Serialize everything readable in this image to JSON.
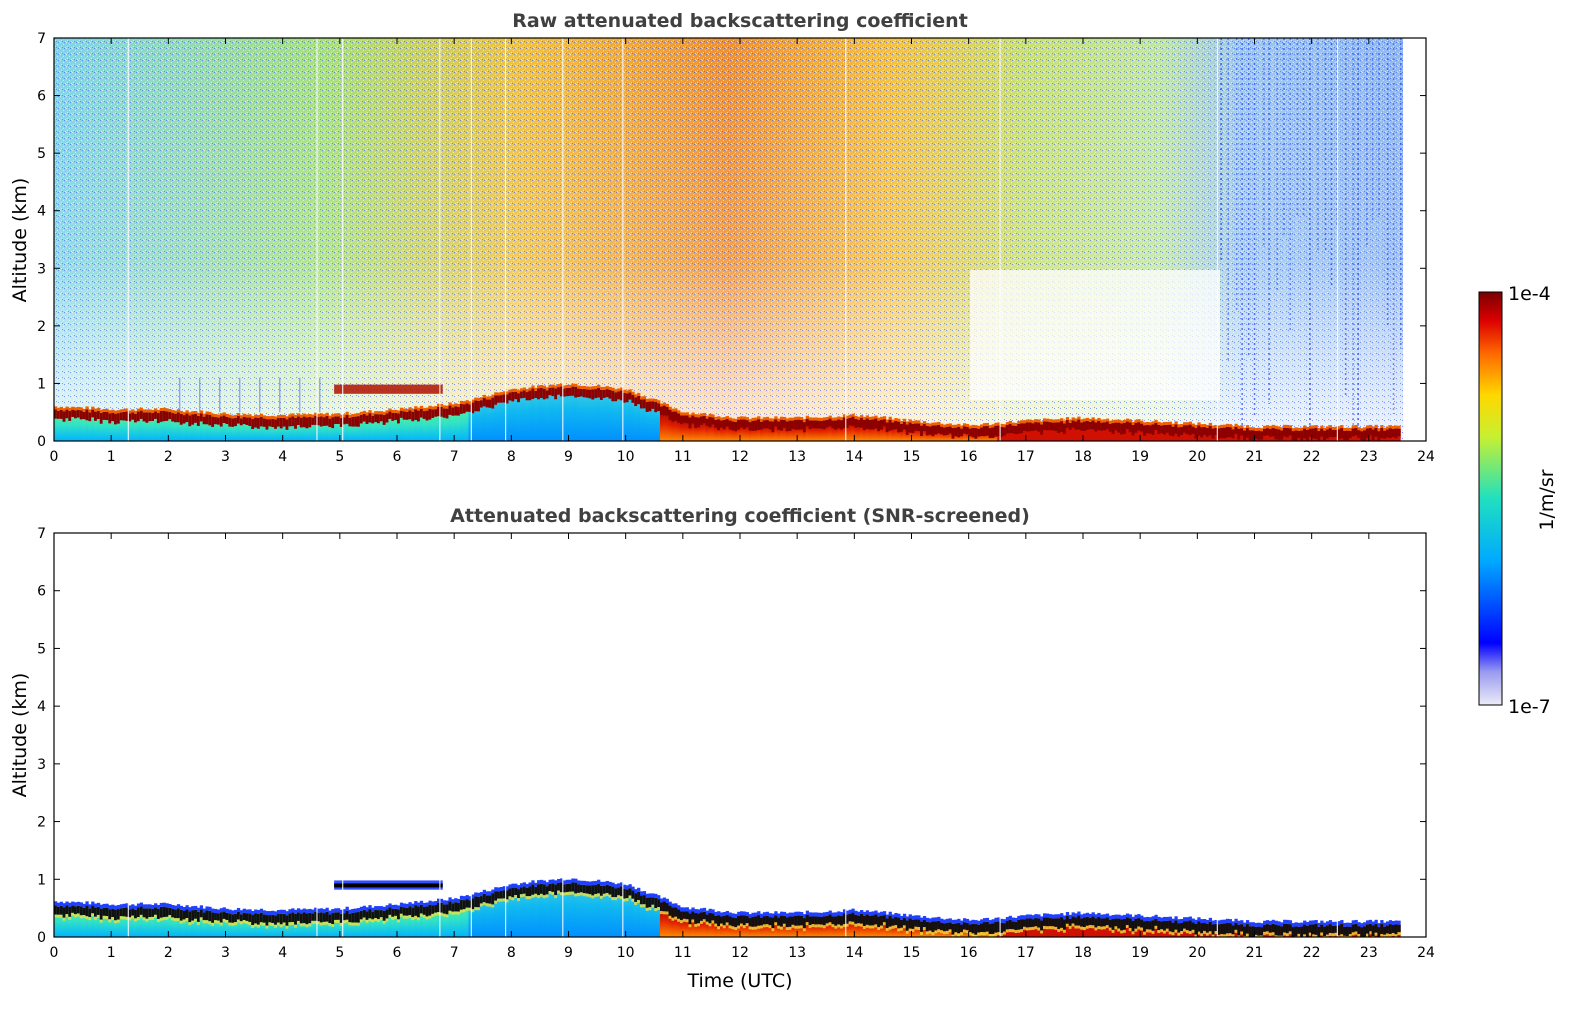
{
  "chart_data": [
    {
      "type": "heatmap",
      "title": "Raw attenuated backscattering coefficient",
      "xlabel": "",
      "ylabel": "Altitude (km)",
      "xlim": [
        0,
        24
      ],
      "ylim": [
        0,
        7
      ],
      "xticks": [
        0,
        1,
        2,
        3,
        4,
        5,
        6,
        7,
        8,
        9,
        10,
        11,
        12,
        13,
        14,
        15,
        16,
        17,
        18,
        19,
        20,
        21,
        22,
        23,
        24
      ],
      "yticks": [
        0,
        1,
        2,
        3,
        4,
        5,
        6,
        7
      ],
      "data_end_hour": 23.55,
      "layer_top_km": [
        {
          "t": 0,
          "h": 0.55
        },
        {
          "t": 1,
          "h": 0.5
        },
        {
          "t": 2,
          "h": 0.5
        },
        {
          "t": 3,
          "h": 0.42
        },
        {
          "t": 4,
          "h": 0.4
        },
        {
          "t": 5,
          "h": 0.42
        },
        {
          "t": 6,
          "h": 0.5
        },
        {
          "t": 7,
          "h": 0.6
        },
        {
          "t": 8,
          "h": 0.85
        },
        {
          "t": 9,
          "h": 0.95
        },
        {
          "t": 10,
          "h": 0.85
        },
        {
          "t": 11,
          "h": 0.45
        },
        {
          "t": 12,
          "h": 0.35
        },
        {
          "t": 13,
          "h": 0.35
        },
        {
          "t": 14,
          "h": 0.4
        },
        {
          "t": 15,
          "h": 0.3
        },
        {
          "t": 16,
          "h": 0.22
        },
        {
          "t": 17,
          "h": 0.3
        },
        {
          "t": 18,
          "h": 0.35
        },
        {
          "t": 19,
          "h": 0.3
        },
        {
          "t": 20,
          "h": 0.25
        },
        {
          "t": 21,
          "h": 0.2
        },
        {
          "t": 22,
          "h": 0.2
        },
        {
          "t": 23,
          "h": 0.2
        }
      ],
      "elevated_layer": {
        "t_start": 4.9,
        "t_end": 6.8,
        "h_bottom": 0.82,
        "h_top": 0.98
      }
    },
    {
      "type": "heatmap",
      "title": "Attenuated backscattering coefficient (SNR-screened)",
      "xlabel": "Time (UTC)",
      "ylabel": "Altitude (km)",
      "xlim": [
        0,
        24
      ],
      "ylim": [
        0,
        7
      ],
      "xticks": [
        0,
        1,
        2,
        3,
        4,
        5,
        6,
        7,
        8,
        9,
        10,
        11,
        12,
        13,
        14,
        15,
        16,
        17,
        18,
        19,
        20,
        21,
        22,
        23,
        24
      ],
      "yticks": [
        0,
        1,
        2,
        3,
        4,
        5,
        6,
        7
      ],
      "data_end_hour": 23.55
    }
  ],
  "colorbar": {
    "label": "1/m/sr",
    "max_label": "1e-4",
    "min_label": "1e-7",
    "scale": "log"
  },
  "colors": {
    "low": "#0000ff",
    "mid": "#00c8c8",
    "high": "#ffff00",
    "max": "#8b0000"
  }
}
